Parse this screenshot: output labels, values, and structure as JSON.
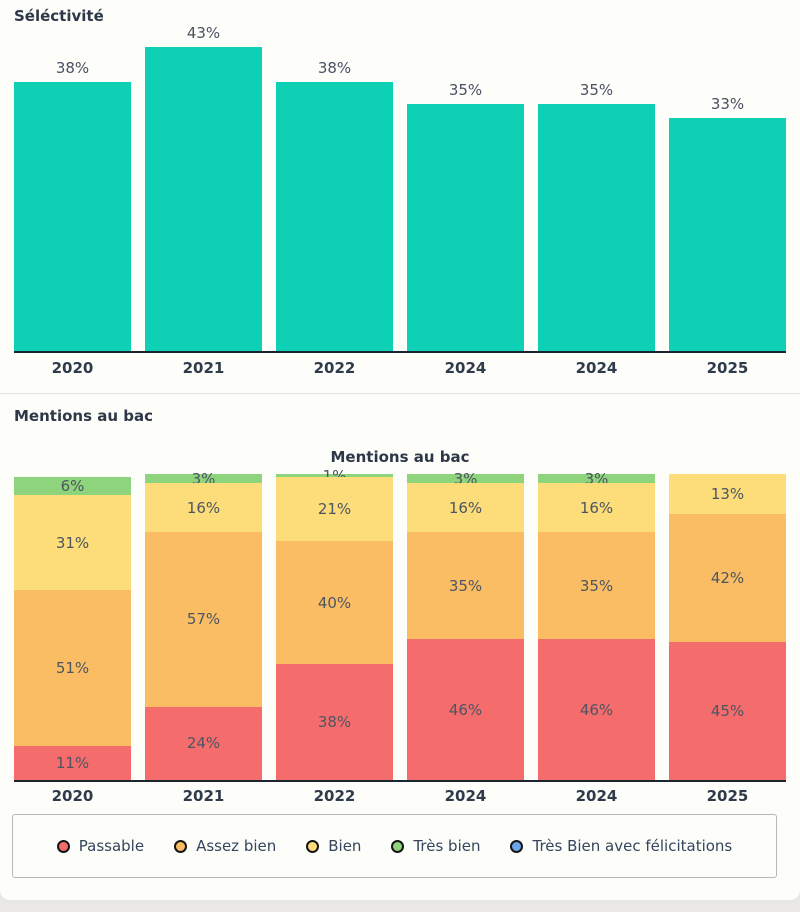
{
  "page": {
    "background": "#e9e8e6",
    "card_background": "#fdfdf9",
    "axis_color": "#1c2430"
  },
  "chart_data": [
    {
      "type": "bar",
      "title": "Séléctivité",
      "categories": [
        "2020",
        "2021",
        "2022",
        "2024",
        "2024",
        "2025"
      ],
      "values": [
        38,
        43,
        38,
        35,
        35,
        33
      ],
      "value_labels": [
        "38%",
        "43%",
        "38%",
        "35%",
        "35%",
        "33%"
      ],
      "bar_color": "#0ed0b4",
      "unit": "%",
      "ylim": [
        0,
        43
      ],
      "grid": false,
      "legend": "none"
    },
    {
      "type": "stacked-bar",
      "header": "Mentions au bac",
      "title": "Mentions au bac",
      "categories": [
        "2020",
        "2021",
        "2022",
        "2024",
        "2024",
        "2025"
      ],
      "series": [
        {
          "name": "Passable",
          "color": "#f56c6c",
          "values": [
            11,
            24,
            38,
            46,
            46,
            45
          ]
        },
        {
          "name": "Assez bien",
          "color": "#fbbd63",
          "values": [
            51,
            57,
            40,
            35,
            35,
            42
          ]
        },
        {
          "name": "Bien",
          "color": "#fcdd79",
          "values": [
            31,
            16,
            21,
            16,
            16,
            13
          ]
        },
        {
          "name": "Très bien",
          "color": "#8ed47c",
          "values": [
            6,
            3,
            1,
            3,
            3,
            0
          ]
        },
        {
          "name": "Très Bien avec félicitations",
          "color": "#6aa5e9",
          "values": [
            0,
            0,
            0,
            0,
            0,
            0
          ]
        }
      ],
      "stack_order_bottom_to_top": [
        "Passable",
        "Assez bien",
        "Bien",
        "Très bien",
        "Très Bien avec félicitations"
      ],
      "unit": "%",
      "ylim": [
        0,
        100
      ],
      "grid": false,
      "legend_position": "bottom"
    }
  ]
}
